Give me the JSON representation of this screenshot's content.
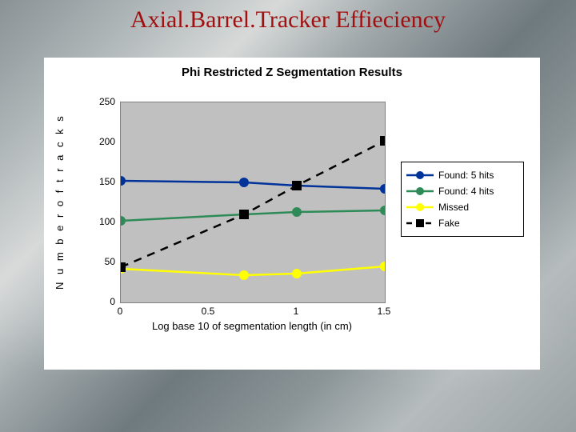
{
  "slide": {
    "title": "Axial.Barrel.Tracker Effieciency",
    "title_color": "#a01010",
    "title_font_family": "Times New Roman",
    "title_fontsize": 30,
    "background_gradient": [
      "#8a9296",
      "#b0b7b9",
      "#d6d9d8",
      "#9fa7aa",
      "#6f7a7e",
      "#8c9699",
      "#b6bcbe",
      "#9aa1a3"
    ]
  },
  "chart": {
    "type": "line",
    "title": "Phi Restricted Z Segmentation Results",
    "title_fontsize": 15,
    "title_weight": "bold",
    "card_bg": "#ffffff",
    "plot_bg": "#c0c0c0",
    "border_color": "#808080",
    "xlabel": "Log base 10 of segmentation length (in cm)",
    "ylabel": "N u m b e r   o f   t r a c k s",
    "label_fontsize": 13,
    "tick_fontsize": 12,
    "xlim": [
      0,
      1.5
    ],
    "ylim": [
      0,
      250
    ],
    "xticks": [
      0,
      0.5,
      1,
      1.5
    ],
    "yticks": [
      0,
      50,
      100,
      150,
      200,
      250
    ],
    "grid": false,
    "marker_size": 6,
    "line_width": 2.5,
    "series": [
      {
        "name": "Found: 5 hits",
        "color": "#003399",
        "marker": "circle",
        "dash": "solid",
        "x": [
          0,
          0.7,
          1.0,
          1.5
        ],
        "y": [
          152,
          150,
          146,
          142
        ]
      },
      {
        "name": "Found: 4 hits",
        "color": "#2e8b57",
        "marker": "circle",
        "dash": "solid",
        "x": [
          0,
          0.7,
          1.0,
          1.5
        ],
        "y": [
          102,
          110,
          113,
          115
        ]
      },
      {
        "name": "Missed",
        "color": "#ffff00",
        "marker": "circle",
        "dash": "solid",
        "x": [
          0,
          0.7,
          1.0,
          1.5
        ],
        "y": [
          42,
          34,
          36,
          45
        ]
      },
      {
        "name": "Fake",
        "color": "#000000",
        "marker": "square",
        "dash": "dashed",
        "x": [
          0,
          0.7,
          1.0,
          1.5
        ],
        "y": [
          44,
          110,
          146,
          202
        ]
      }
    ],
    "legend": {
      "position": "right",
      "border_color": "#000000",
      "bg": "#ffffff",
      "fontsize": 12
    }
  }
}
